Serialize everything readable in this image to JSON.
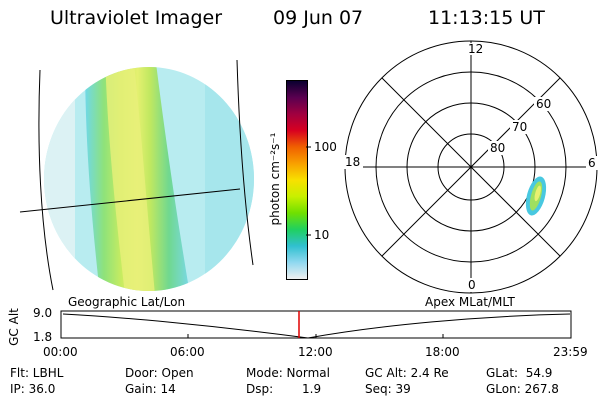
{
  "header": {
    "instrument": "Ultraviolet Imager",
    "date": "09 Jun 07",
    "time": "11:13:15 UT"
  },
  "colorbar": {
    "unit_label": "photon cm⁻²s⁻¹",
    "tick_labels": [
      "100",
      "10"
    ],
    "colors": [
      "#0a0030",
      "#5a0050",
      "#a00040",
      "#d80020",
      "#f06000",
      "#f8a000",
      "#f8e000",
      "#c8f000",
      "#70e000",
      "#20d060",
      "#30c0d0",
      "#90d8f0",
      "#f0f0f0"
    ]
  },
  "polar_plot": {
    "mlt_labels": [
      "12",
      "18",
      "6",
      "0"
    ],
    "lat_labels": [
      "60",
      "70",
      "80"
    ]
  },
  "timeline": {
    "left_title": "Geographic Lat/Lon",
    "right_title": "Apex MLat/MLT",
    "y_axis_label": "GC Alt",
    "y_ticks": [
      "9.0",
      "1.8"
    ],
    "x_ticks": [
      "00:00",
      "06:00",
      "12:00",
      "18:00",
      "23:59"
    ],
    "marker_color": "#e00000"
  },
  "info": {
    "filter": "Flt: LBHL",
    "ip": "IP: 36.0",
    "door": "Door: Open",
    "gain": "Gain: 14",
    "mode": "Mode: Normal",
    "dsp_label": "Dsp:",
    "dsp_value": "1.9",
    "gc_alt": "GC Alt: 2.4 Re",
    "seq": "Seq: 39",
    "glat": "GLat:  54.9",
    "glon": "GLon: 267.8"
  }
}
